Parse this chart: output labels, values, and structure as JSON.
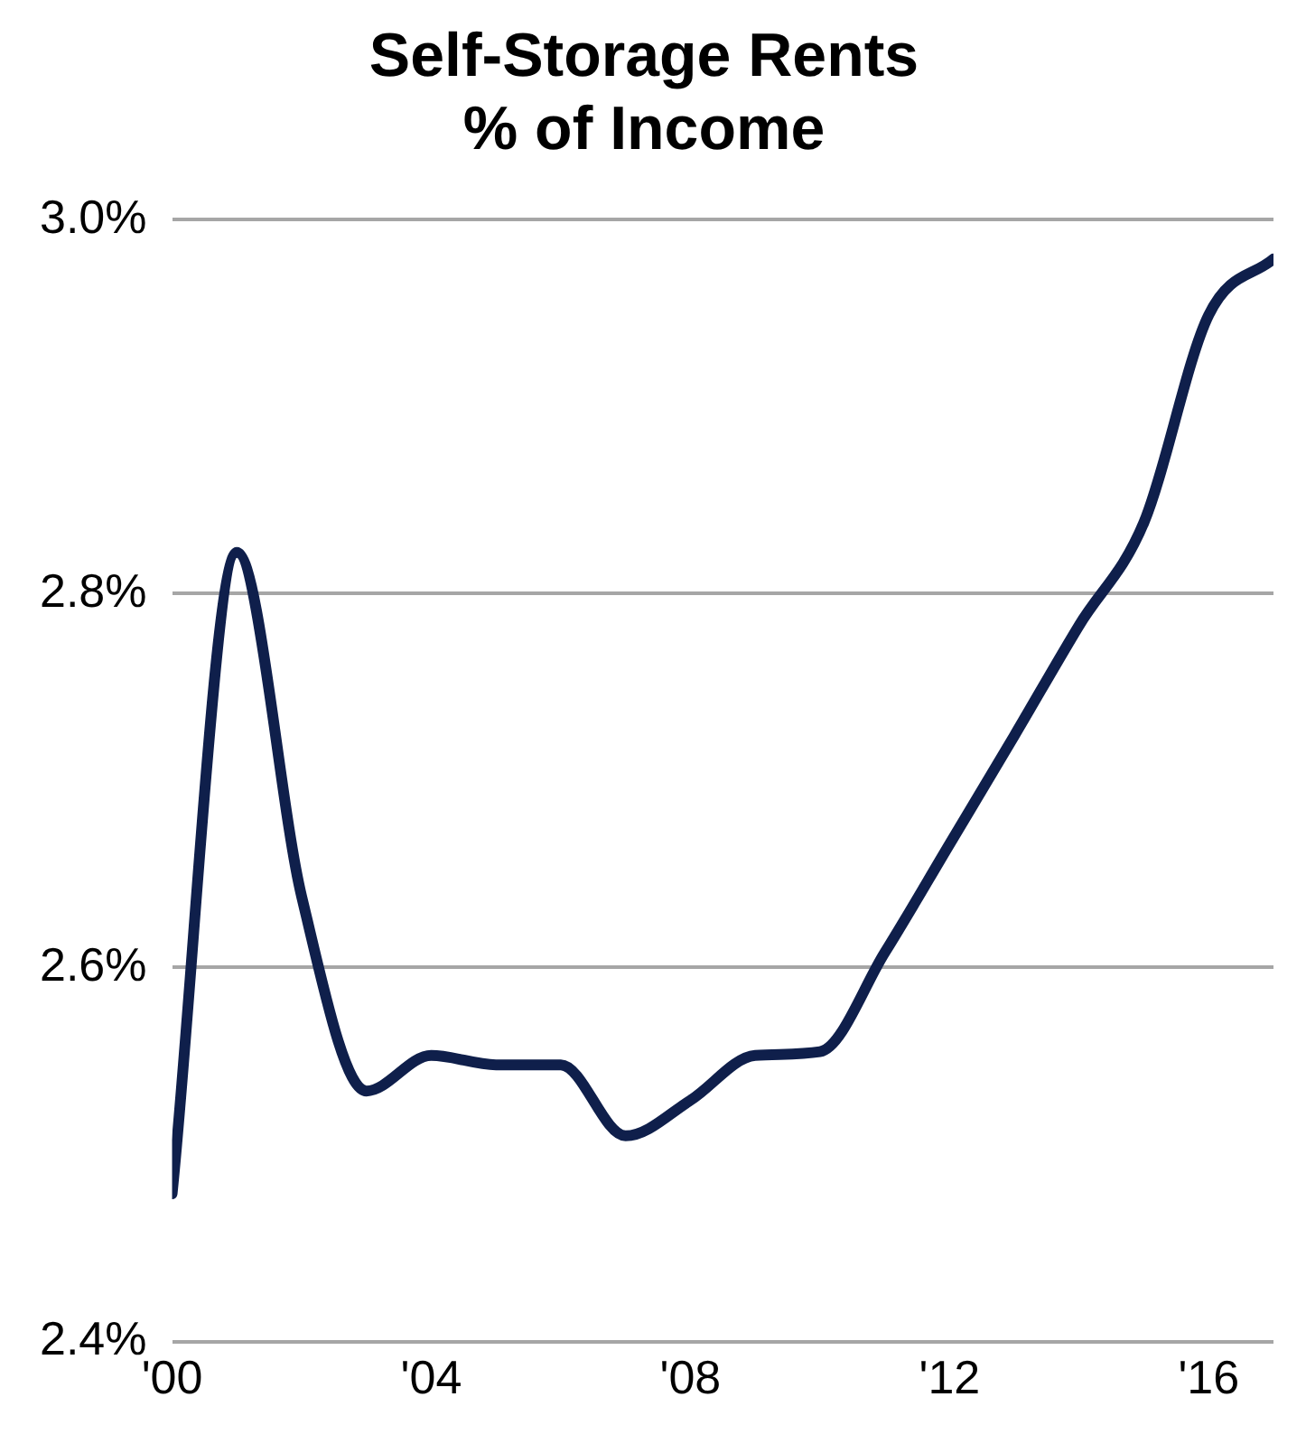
{
  "chart_data": {
    "type": "line",
    "title": "Self-Storage Rents\n% of Income",
    "x": [
      2000,
      2001,
      2002,
      2003,
      2004,
      2005,
      2006,
      2007,
      2008,
      2009,
      2010,
      2011,
      2012,
      2013,
      2014,
      2015,
      2016,
      2017
    ],
    "series": [
      {
        "color": "#0f1f4b",
        "values": [
          2.479,
          2.822,
          2.638,
          2.534,
          2.553,
          2.548,
          2.548,
          2.51,
          2.529,
          2.553,
          2.555,
          2.608,
          2.666,
          2.724,
          2.783,
          2.838,
          2.949,
          2.979
        ]
      }
    ],
    "xlim": [
      2000,
      2017
    ],
    "xticks": [
      {
        "value": 2000,
        "label": "'00"
      },
      {
        "value": 2004,
        "label": "'04"
      },
      {
        "value": 2008,
        "label": "'08"
      },
      {
        "value": 2012,
        "label": "'12"
      },
      {
        "value": 2016,
        "label": "'16"
      }
    ],
    "ylim": [
      2.4,
      3.0
    ],
    "yticks": [
      {
        "value": 2.4,
        "label": "2.4%"
      },
      {
        "value": 2.6,
        "label": "2.6%"
      },
      {
        "value": 2.8,
        "label": "2.8%"
      },
      {
        "value": 3.0,
        "label": "3.0%"
      }
    ],
    "grid": "y",
    "legend": false,
    "marker": "none",
    "line_style": "solid"
  }
}
